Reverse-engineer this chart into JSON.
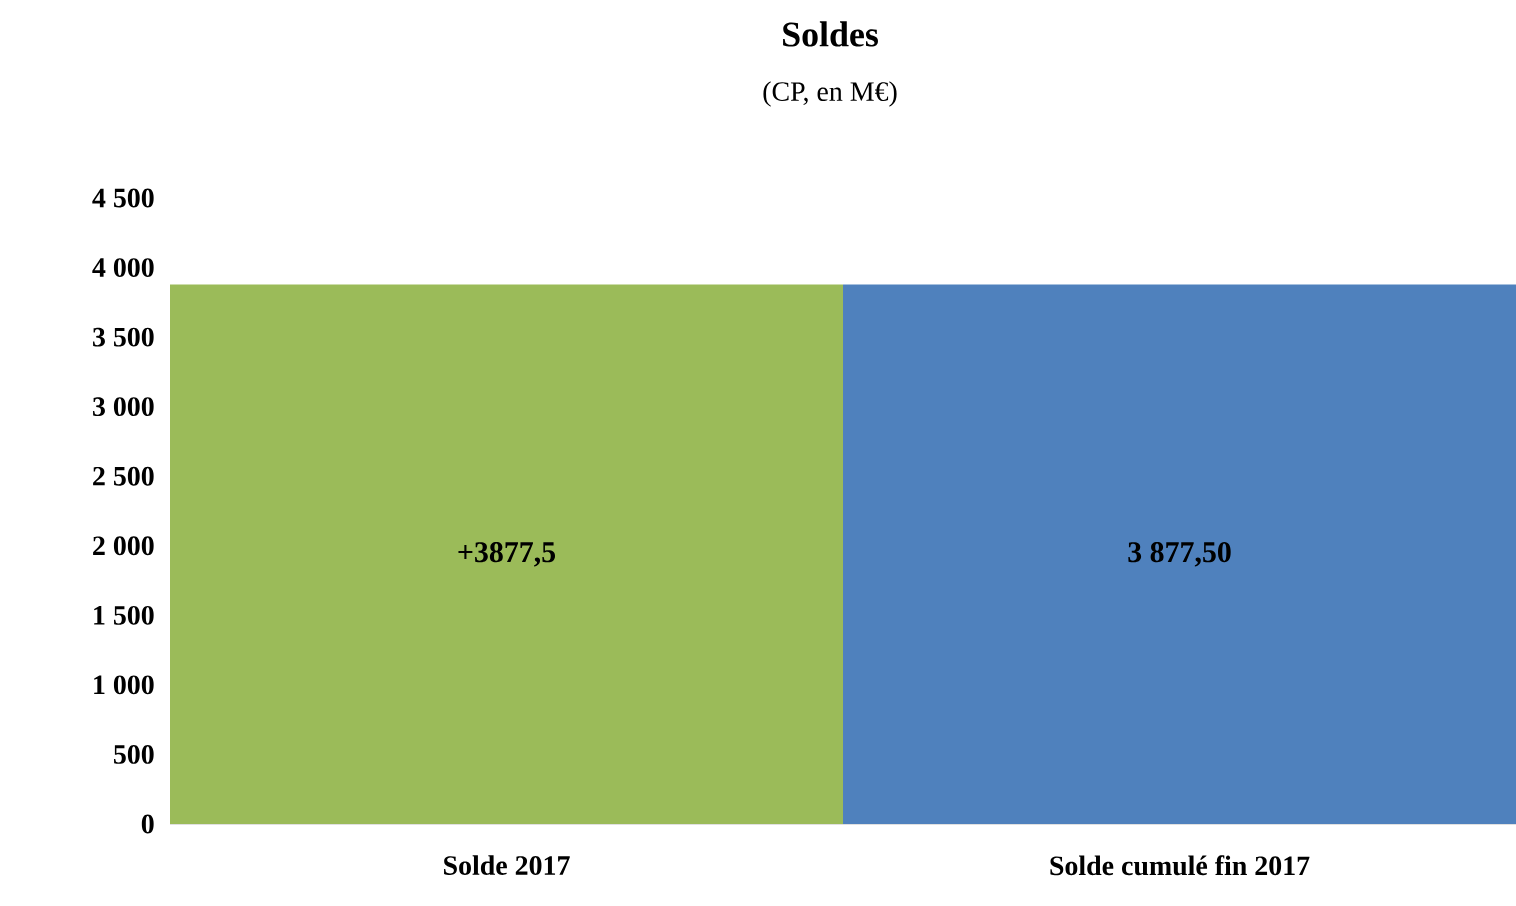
{
  "chart_data": {
    "type": "bar",
    "title": "Soldes",
    "subtitle": "(CP, en M€)",
    "categories": [
      "Solde 2017",
      "Solde cumulé fin 2017"
    ],
    "values": [
      3877.5,
      3877.5
    ],
    "colors": [
      "#9bbb59",
      "#4f81bd"
    ],
    "value_labels": [
      "+3877,5",
      "3 877,50"
    ],
    "ylim": [
      0,
      4500
    ],
    "yticks": [
      0,
      500,
      {
        "value": 1000,
        "label": "1 000"
      },
      {
        "value": 1500,
        "label": "1 500"
      },
      {
        "value": 2000,
        "label": "2 000"
      },
      {
        "value": 2500,
        "label": "2 500"
      },
      {
        "value": 3000,
        "label": "3 000"
      },
      {
        "value": 3500,
        "label": "3 500"
      },
      {
        "value": 4000,
        "label": "4 000"
      },
      {
        "value": 4500,
        "label": "4 500"
      }
    ],
    "grid": false
  }
}
